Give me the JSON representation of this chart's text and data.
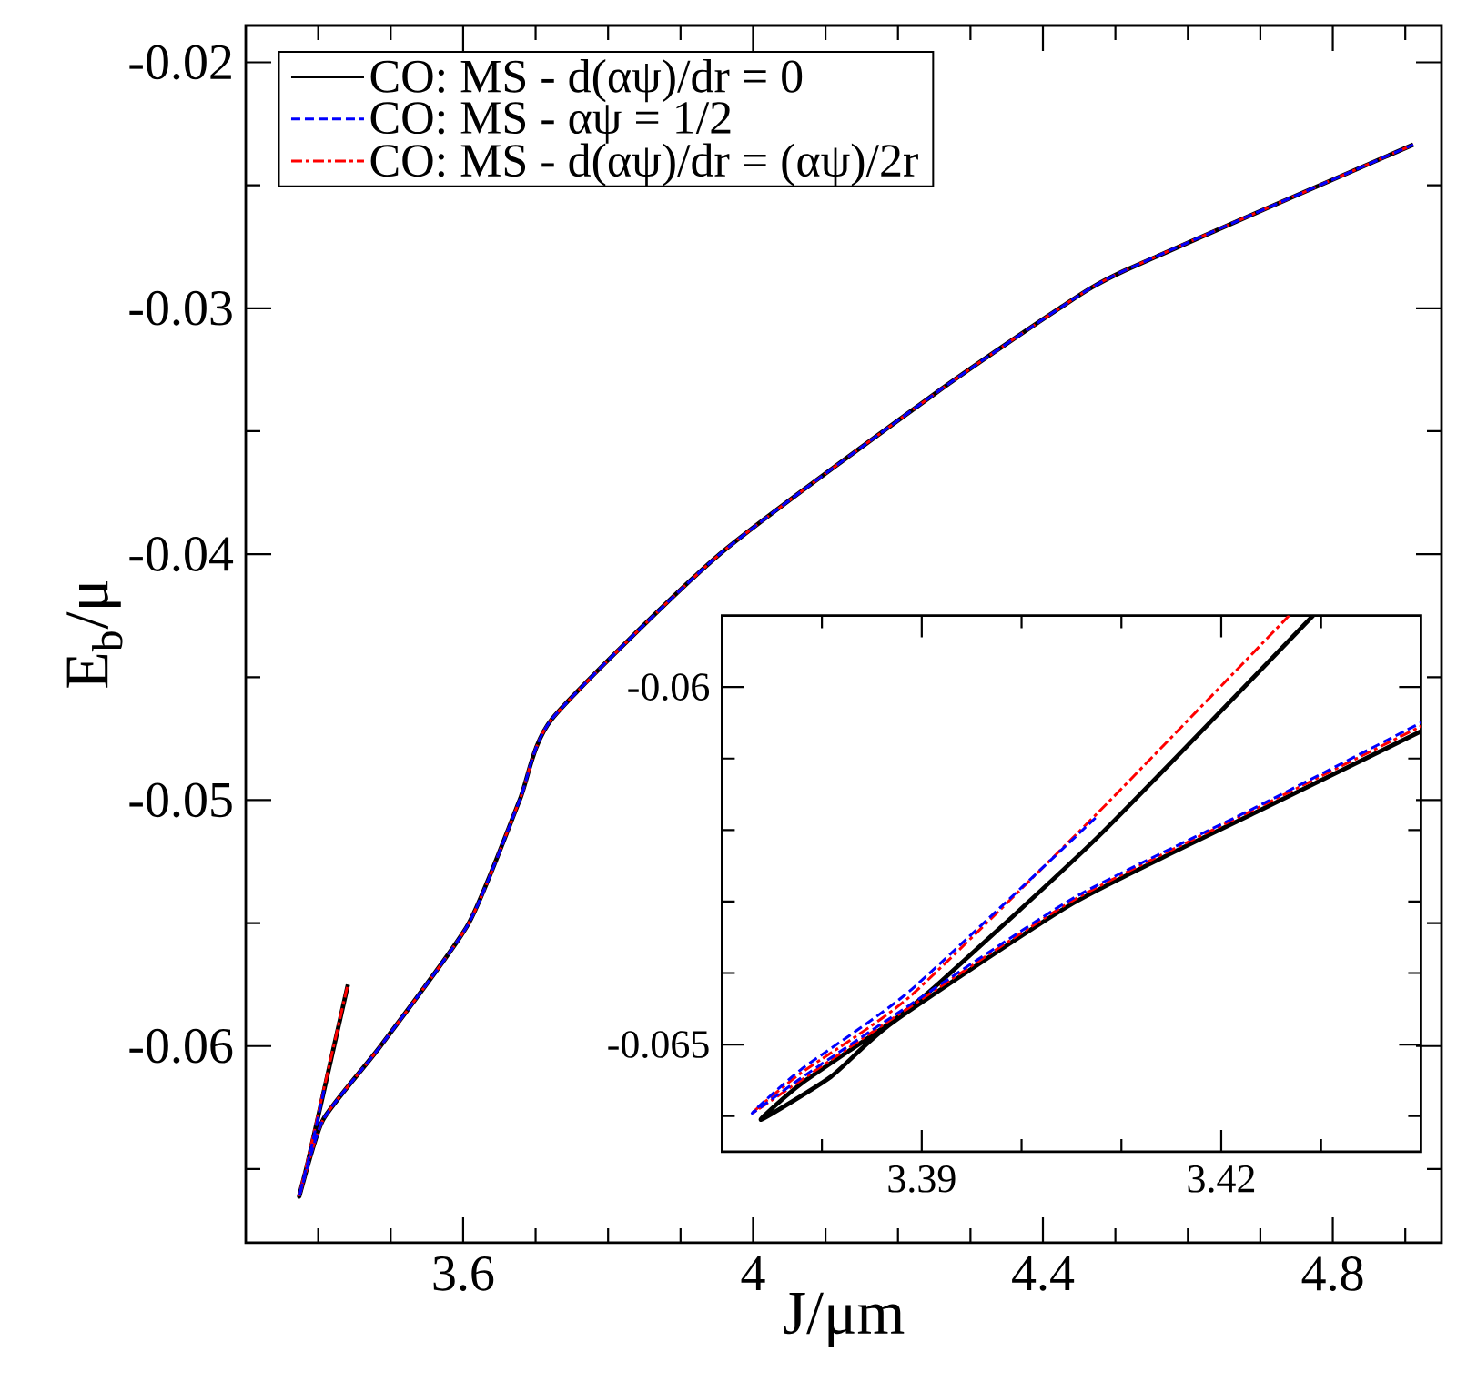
{
  "chart_data": [
    {
      "type": "line",
      "xlabel": "J/μm",
      "ylabel": "E$_{b}$/μ",
      "xlim": [
        3.3,
        4.95
      ],
      "ylim": [
        -0.068,
        -0.0185
      ],
      "xticks": [
        {
          "value": 3.4,
          "label": null
        },
        {
          "value": 3.5,
          "label": null
        },
        3.6,
        {
          "value": 3.7,
          "label": null
        },
        {
          "value": 3.8,
          "label": null
        },
        {
          "value": 3.9,
          "label": null
        },
        4,
        {
          "value": 4.1,
          "label": null
        },
        {
          "value": 4.2,
          "label": null
        },
        {
          "value": 4.3,
          "label": null
        },
        4.4,
        {
          "value": 4.5,
          "label": null
        },
        {
          "value": 4.6,
          "label": null
        },
        {
          "value": 4.7,
          "label": null
        },
        4.8,
        {
          "value": 4.9,
          "label": null
        }
      ],
      "yticks": [
        {
          "value": -0.065,
          "label": null
        },
        -0.06,
        {
          "value": -0.055,
          "label": null
        },
        -0.05,
        {
          "value": -0.045,
          "label": null
        },
        -0.04,
        {
          "value": -0.035,
          "label": null
        },
        -0.03,
        {
          "value": -0.025,
          "label": null
        },
        -0.02
      ],
      "legend": "top left",
      "series": [
        {
          "name": "CO: MS - d(αψ)/dr = 0",
          "color": "#000000",
          "line_style": "solid",
          "x": [
            3.441,
            3.405,
            3.385,
            3.374,
            3.4066,
            3.486,
            3.607,
            3.678,
            3.7226,
            3.954,
            4.2535,
            4.423,
            4.5125,
            4.911
          ],
          "values": [
            -0.0575,
            -0.0622,
            -0.0648,
            -0.0661,
            -0.063,
            -0.06,
            -0.05505,
            -0.05,
            -0.0467,
            -0.04,
            -0.03342,
            -0.03,
            -0.02847,
            -0.02335
          ]
        },
        {
          "name": "CO: MS - αψ = 1/2",
          "color": "#0000ff",
          "line_style": "dashed",
          "x": [
            3.408,
            3.39,
            3.374,
            3.4066,
            3.486,
            3.607,
            3.678,
            3.7226,
            3.954,
            4.2535,
            4.423,
            4.5125,
            4.911
          ],
          "values": [
            -0.0618,
            -0.0642,
            -0.0661,
            -0.063,
            -0.06,
            -0.05505,
            -0.05,
            -0.0467,
            -0.04,
            -0.03342,
            -0.03,
            -0.02847,
            -0.02335
          ]
        },
        {
          "name": "CO: MS - d(αψ)/dr = (αψ)/2r",
          "color": "#ff0000",
          "line_style": "dashdot",
          "x": [
            3.44,
            3.405,
            3.385,
            3.374,
            3.4066,
            3.486,
            3.607,
            3.678,
            3.7226,
            3.954,
            4.2535,
            4.423,
            4.5125,
            4.911
          ],
          "values": [
            -0.0576,
            -0.0621,
            -0.0647,
            -0.0661,
            -0.063,
            -0.06,
            -0.05505,
            -0.05,
            -0.0467,
            -0.04,
            -0.03342,
            -0.03,
            -0.02847,
            -0.02335
          ]
        }
      ]
    },
    {
      "type": "line",
      "xlim": [
        3.37,
        3.44
      ],
      "ylim": [
        -0.0665,
        -0.059
      ],
      "xticks": [
        {
          "value": 3.38,
          "label": null
        },
        3.39,
        {
          "value": 3.4,
          "label": null
        },
        {
          "value": 3.41,
          "label": null
        },
        3.42,
        {
          "value": 3.43,
          "label": null
        }
      ],
      "yticks": [
        {
          "value": -0.066,
          "label": null
        },
        -0.065,
        {
          "value": -0.064,
          "label": null
        },
        {
          "value": -0.063,
          "label": null
        },
        {
          "value": -0.062,
          "label": null
        },
        {
          "value": -0.061,
          "label": null
        },
        -0.06
      ],
      "series": [
        {
          "color": "#000000",
          "line_style": "solid",
          "x": [
            3.4292,
            3.4077,
            3.3919,
            3.387,
            3.3779,
            3.3739,
            3.3809,
            3.387,
            3.4052,
            3.4235,
            3.44
          ],
          "values": [
            -0.059,
            -0.06209,
            -0.06412,
            -0.06468,
            -0.06555,
            -0.06605,
            -0.06545,
            -0.0647,
            -0.06302,
            -0.06175,
            -0.06062
          ]
        },
        {
          "color": "#0000ff",
          "line_style": "dashed",
          "x": [
            3.4074,
            3.3888,
            3.3779,
            3.373,
            3.3779,
            3.3864,
            3.4052,
            3.4235,
            3.44
          ],
          "values": [
            -0.06183,
            -0.06425,
            -0.06535,
            -0.06596,
            -0.06547,
            -0.06467,
            -0.06295,
            -0.06168,
            -0.0605
          ]
        },
        {
          "color": "#ff0000",
          "line_style": "dashdot",
          "x": [
            3.4268,
            3.4077,
            3.3888,
            3.3779,
            3.373,
            3.3779,
            3.3864,
            3.4052,
            3.4235,
            3.44
          ],
          "values": [
            -0.059,
            -0.06175,
            -0.06433,
            -0.0654,
            -0.06596,
            -0.0655,
            -0.0647,
            -0.06298,
            -0.0617,
            -0.06055
          ]
        }
      ]
    }
  ]
}
